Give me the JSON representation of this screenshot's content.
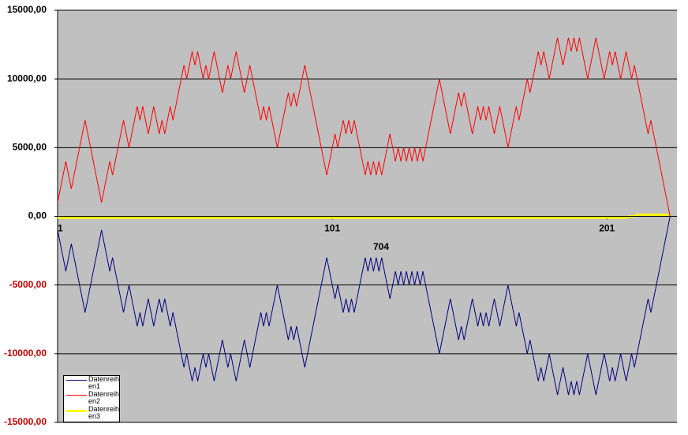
{
  "chart_data": {
    "type": "line",
    "annotation": "704",
    "xlim": [
      1,
      226.5
    ],
    "xticks": [
      1,
      101,
      201
    ],
    "ylim": [
      -15000,
      15000
    ],
    "yticks": [
      {
        "value": -15000,
        "label": "-15000,00"
      },
      {
        "value": -10000,
        "label": "-10000,00"
      },
      {
        "value": -5000,
        "label": "-5000,00"
      },
      {
        "value": 0,
        "label": "0,00"
      },
      {
        "value": 5000,
        "label": "5000,00"
      },
      {
        "value": 10000,
        "label": "10000,00"
      },
      {
        "value": 15000,
        "label": "15000,00"
      }
    ],
    "grid": true,
    "plot_background": "#c0c0c0",
    "negative_label_color": "#c00000",
    "legend_position": "bottom-left",
    "series": [
      {
        "name": "Datenreihen1",
        "color": "#000080",
        "values": [
          -1000,
          -2000,
          -3000,
          -4000,
          -3000,
          -2000,
          -3000,
          -4000,
          -5000,
          -6000,
          -7000,
          -6000,
          -5000,
          -4000,
          -3000,
          -2000,
          -1000,
          -2000,
          -3000,
          -4000,
          -3000,
          -4000,
          -5000,
          -6000,
          -7000,
          -6000,
          -5000,
          -6000,
          -7000,
          -8000,
          -7000,
          -8000,
          -7000,
          -6000,
          -7000,
          -8000,
          -7000,
          -6000,
          -7000,
          -6000,
          -7000,
          -8000,
          -7000,
          -8000,
          -9000,
          -10000,
          -11000,
          -10000,
          -11000,
          -12000,
          -11000,
          -12000,
          -11000,
          -10000,
          -11000,
          -10000,
          -11000,
          -12000,
          -11000,
          -10000,
          -9000,
          -10000,
          -11000,
          -10000,
          -11000,
          -12000,
          -11000,
          -10000,
          -9000,
          -10000,
          -11000,
          -10000,
          -9000,
          -8000,
          -7000,
          -8000,
          -7000,
          -8000,
          -7000,
          -6000,
          -5000,
          -6000,
          -7000,
          -8000,
          -9000,
          -8000,
          -9000,
          -8000,
          -9000,
          -10000,
          -11000,
          -10000,
          -9000,
          -8000,
          -7000,
          -6000,
          -5000,
          -4000,
          -3000,
          -4000,
          -5000,
          -6000,
          -5000,
          -6000,
          -7000,
          -6000,
          -7000,
          -6000,
          -7000,
          -6000,
          -5000,
          -4000,
          -3000,
          -4000,
          -3000,
          -4000,
          -3000,
          -4000,
          -3000,
          -4000,
          -5000,
          -6000,
          -5000,
          -4000,
          -5000,
          -4000,
          -5000,
          -4000,
          -5000,
          -4000,
          -5000,
          -4000,
          -5000,
          -4000,
          -5000,
          -6000,
          -7000,
          -8000,
          -9000,
          -10000,
          -9000,
          -8000,
          -7000,
          -6000,
          -7000,
          -8000,
          -9000,
          -8000,
          -9000,
          -8000,
          -7000,
          -6000,
          -7000,
          -8000,
          -7000,
          -8000,
          -7000,
          -8000,
          -7000,
          -6000,
          -7000,
          -8000,
          -7000,
          -6000,
          -5000,
          -6000,
          -7000,
          -8000,
          -7000,
          -8000,
          -9000,
          -10000,
          -9000,
          -10000,
          -11000,
          -12000,
          -11000,
          -12000,
          -11000,
          -10000,
          -11000,
          -12000,
          -13000,
          -12000,
          -11000,
          -12000,
          -13000,
          -12000,
          -13000,
          -12000,
          -13000,
          -12000,
          -11000,
          -10000,
          -11000,
          -12000,
          -13000,
          -12000,
          -11000,
          -10000,
          -11000,
          -12000,
          -11000,
          -12000,
          -11000,
          -10000,
          -11000,
          -12000,
          -11000,
          -10000,
          -11000,
          -10000,
          -9000,
          -8000,
          -7000,
          -6000,
          -7000,
          -6000,
          -5000,
          -4000,
          -3000,
          -2000,
          -1000,
          0
        ]
      },
      {
        "name": "Datenreihen2",
        "color": "#ff0000",
        "values": [
          1000,
          2000,
          3000,
          4000,
          3000,
          2000,
          3000,
          4000,
          5000,
          6000,
          7000,
          6000,
          5000,
          4000,
          3000,
          2000,
          1000,
          2000,
          3000,
          4000,
          3000,
          4000,
          5000,
          6000,
          7000,
          6000,
          5000,
          6000,
          7000,
          8000,
          7000,
          8000,
          7000,
          6000,
          7000,
          8000,
          7000,
          6000,
          7000,
          6000,
          7000,
          8000,
          7000,
          8000,
          9000,
          10000,
          11000,
          10000,
          11000,
          12000,
          11000,
          12000,
          11000,
          10000,
          11000,
          10000,
          11000,
          12000,
          11000,
          10000,
          9000,
          10000,
          11000,
          10000,
          11000,
          12000,
          11000,
          10000,
          9000,
          10000,
          11000,
          10000,
          9000,
          8000,
          7000,
          8000,
          7000,
          8000,
          7000,
          6000,
          5000,
          6000,
          7000,
          8000,
          9000,
          8000,
          9000,
          8000,
          9000,
          10000,
          11000,
          10000,
          9000,
          8000,
          7000,
          6000,
          5000,
          4000,
          3000,
          4000,
          5000,
          6000,
          5000,
          6000,
          7000,
          6000,
          7000,
          6000,
          7000,
          6000,
          5000,
          4000,
          3000,
          4000,
          3000,
          4000,
          3000,
          4000,
          3000,
          4000,
          5000,
          6000,
          5000,
          4000,
          5000,
          4000,
          5000,
          4000,
          5000,
          4000,
          5000,
          4000,
          5000,
          4000,
          5000,
          6000,
          7000,
          8000,
          9000,
          10000,
          9000,
          8000,
          7000,
          6000,
          7000,
          8000,
          9000,
          8000,
          9000,
          8000,
          7000,
          6000,
          7000,
          8000,
          7000,
          8000,
          7000,
          8000,
          7000,
          6000,
          7000,
          8000,
          7000,
          6000,
          5000,
          6000,
          7000,
          8000,
          7000,
          8000,
          9000,
          10000,
          9000,
          10000,
          11000,
          12000,
          11000,
          12000,
          11000,
          10000,
          11000,
          12000,
          13000,
          12000,
          11000,
          12000,
          13000,
          12000,
          13000,
          12000,
          13000,
          12000,
          11000,
          10000,
          11000,
          12000,
          13000,
          12000,
          11000,
          10000,
          11000,
          12000,
          11000,
          12000,
          11000,
          10000,
          11000,
          12000,
          11000,
          10000,
          11000,
          10000,
          9000,
          8000,
          7000,
          6000,
          7000,
          6000,
          5000,
          4000,
          3000,
          2000,
          1000,
          0
        ]
      },
      {
        "name": "Datenreihen3",
        "color": "#ffff00",
        "values": [
          -100,
          -100,
          -100,
          -100,
          -100,
          -100,
          -100,
          -100,
          -100,
          -100,
          -100,
          -100,
          -100,
          -100,
          -100,
          -100,
          -100,
          -100,
          -100,
          -100,
          -100,
          -100,
          -100,
          -100,
          -100,
          -100,
          -100,
          -100,
          -100,
          -100,
          -100,
          -100,
          -100,
          -100,
          -100,
          -100,
          -100,
          -100,
          -100,
          -100,
          -100,
          -100,
          -100,
          -100,
          -100,
          -100,
          -100,
          -100,
          -100,
          -100,
          -100,
          -100,
          -100,
          -100,
          -100,
          -100,
          -100,
          -100,
          -100,
          -100,
          -100,
          -100,
          -100,
          -100,
          -100,
          -100,
          -100,
          -100,
          -100,
          -100,
          -100,
          -100,
          -100,
          -100,
          -100,
          -100,
          -100,
          -100,
          -100,
          -100,
          -100,
          -100,
          -100,
          -100,
          -100,
          -100,
          -100,
          -100,
          -100,
          -100,
          -100,
          -100,
          -100,
          -100,
          -100,
          -100,
          -100,
          -100,
          -100,
          -100,
          -100,
          -100,
          -100,
          -100,
          -100,
          -100,
          -100,
          -100,
          -100,
          -100,
          -100,
          -100,
          -100,
          -100,
          -100,
          -100,
          -100,
          -100,
          -100,
          -100,
          -100,
          -100,
          -100,
          -100,
          -100,
          -100,
          -100,
          -100,
          -100,
          -100,
          -100,
          -100,
          -100,
          -100,
          -100,
          -100,
          -100,
          -100,
          -100,
          -100,
          -100,
          -100,
          -100,
          -100,
          -100,
          -100,
          -100,
          -100,
          -100,
          -100,
          -100,
          -100,
          -100,
          -100,
          -100,
          -100,
          -100,
          -100,
          -100,
          -100,
          -100,
          -100,
          -100,
          -100,
          -100,
          -100,
          -100,
          -100,
          -100,
          -100,
          -100,
          -100,
          -100,
          -100,
          -100,
          -100,
          -100,
          -100,
          -100,
          -100,
          -100,
          -100,
          -100,
          -100,
          -100,
          -100,
          -100,
          -100,
          -100,
          -100,
          -100,
          -100,
          -100,
          -100,
          -100,
          -100,
          -100,
          -100,
          -100,
          -100,
          -100,
          -100,
          -100,
          -100,
          -100,
          -100,
          -100,
          -100,
          0,
          0,
          0,
          100,
          100,
          100,
          100,
          100,
          100,
          100,
          100,
          100,
          100,
          100,
          100,
          0
        ]
      }
    ]
  }
}
